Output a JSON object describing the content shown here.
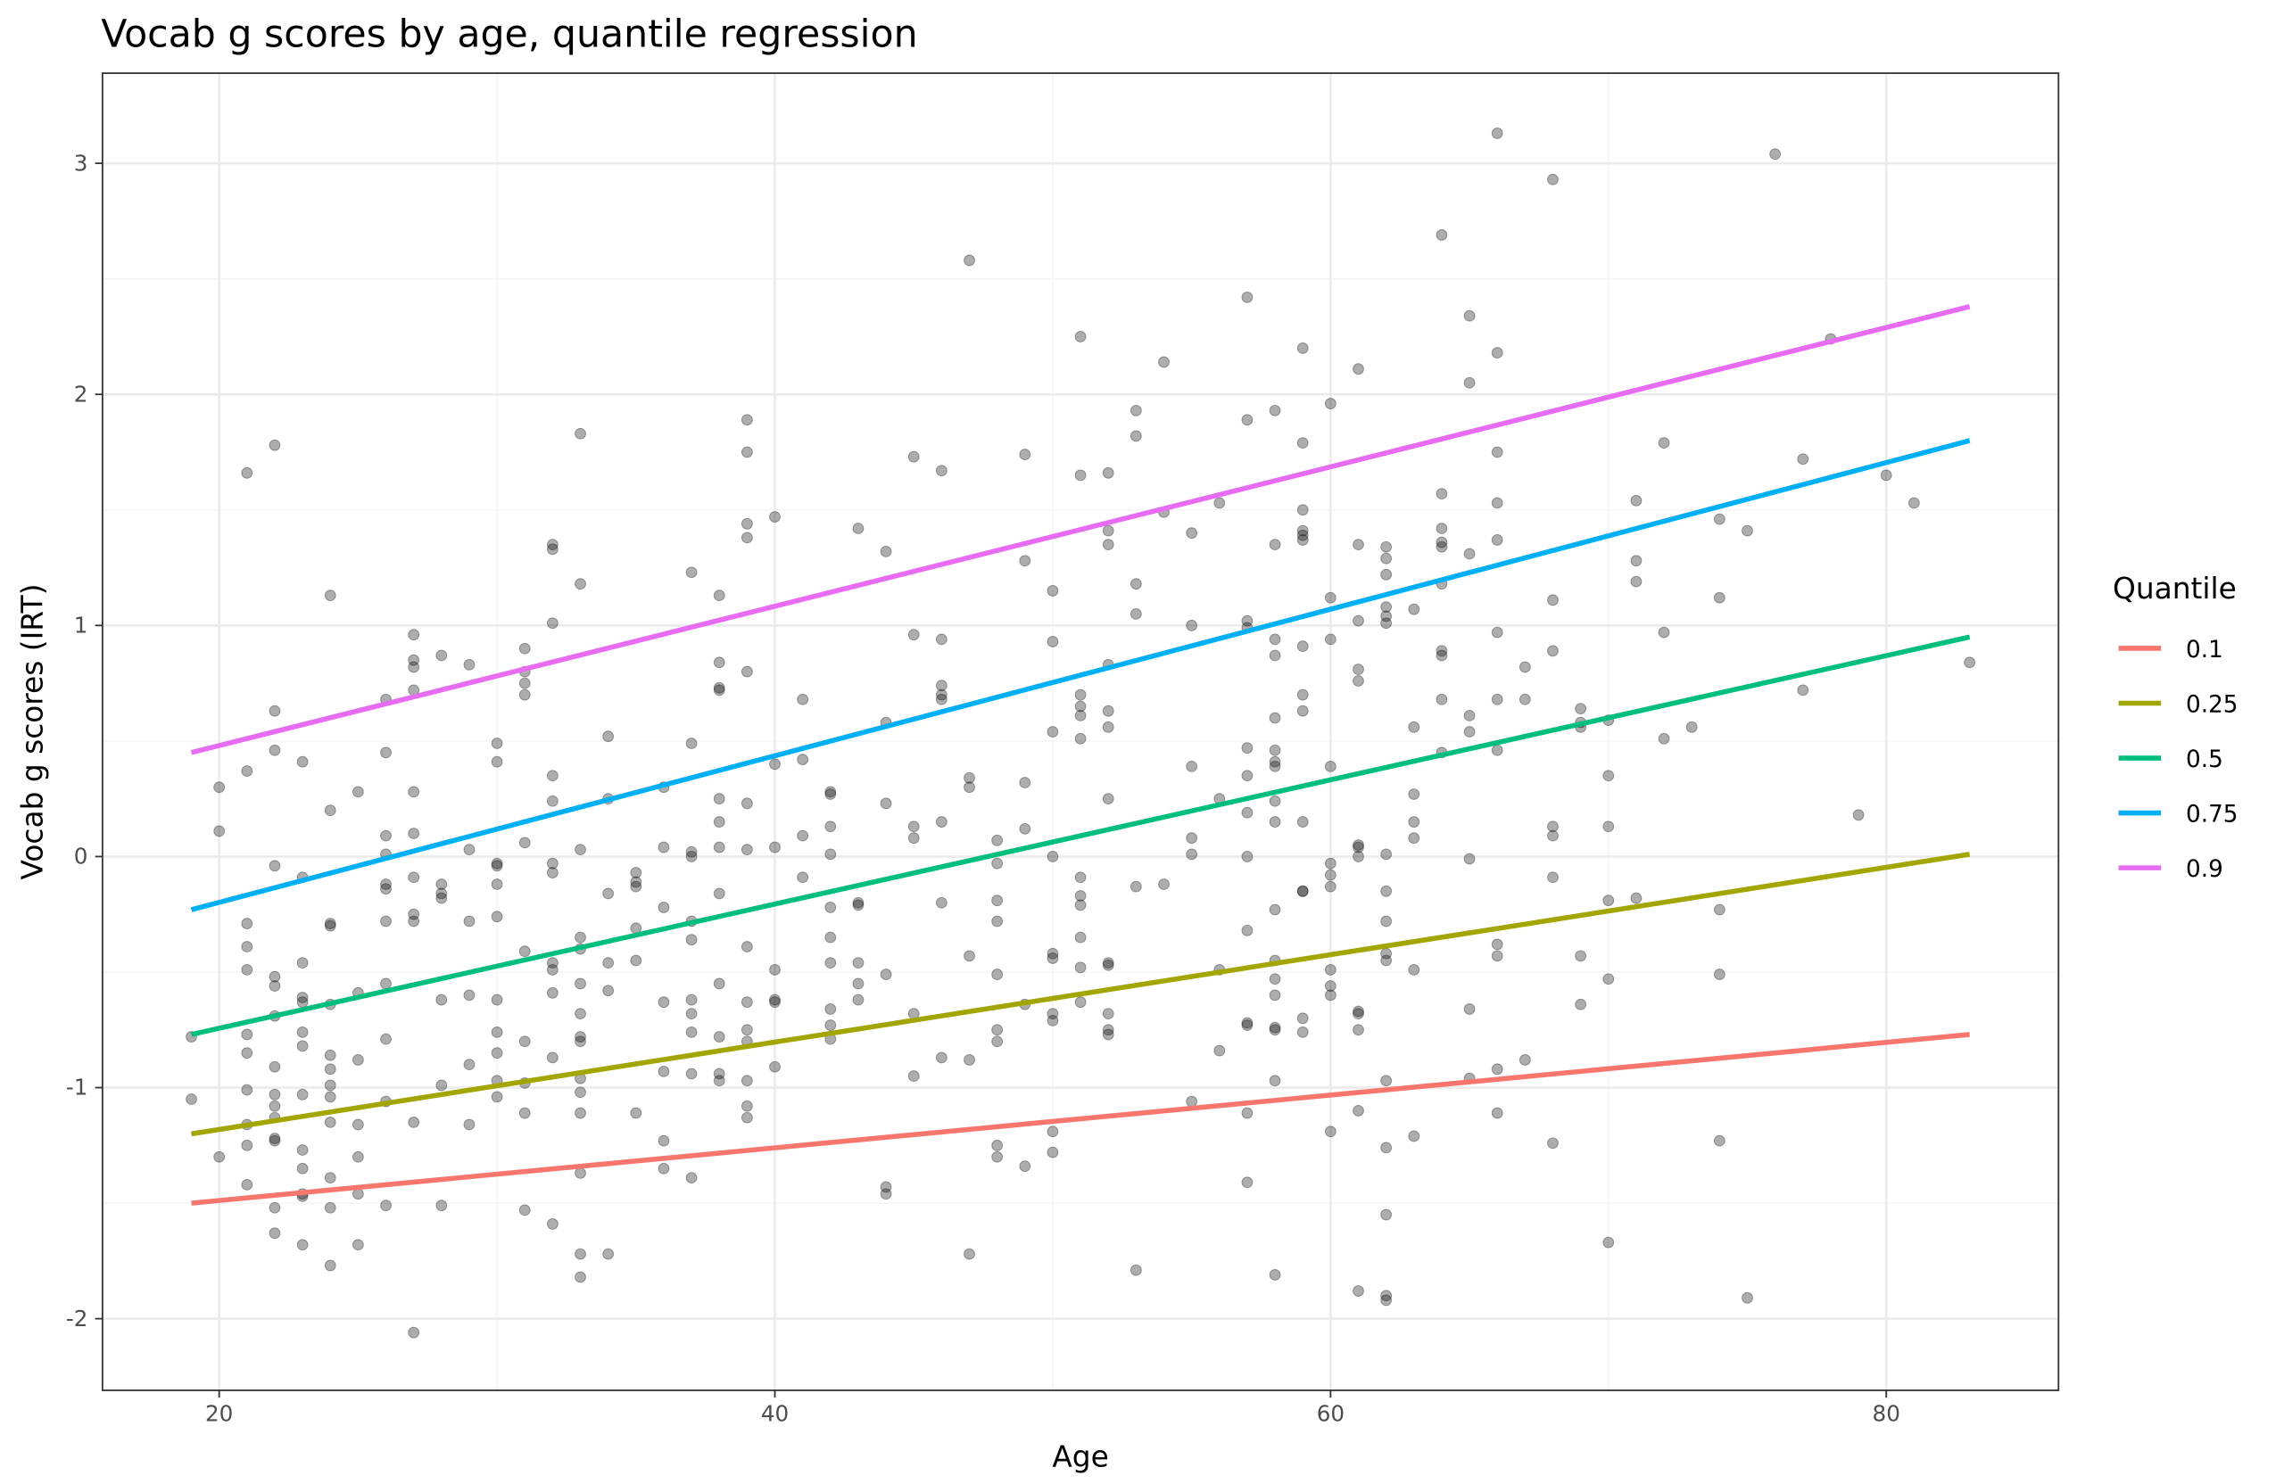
{
  "chart_data": {
    "type": "scatter",
    "title": "Vocab g scores by age, quantile regression",
    "xlabel": "Age",
    "ylabel": "Vocab g scores (IRT)",
    "xlim": [
      15.8,
      86.2
    ],
    "ylim": [
      -2.31,
      3.39
    ],
    "x_ticks": [
      20,
      40,
      60,
      80
    ],
    "x_tick_labels": [
      "20",
      "40",
      "60",
      "80"
    ],
    "y_ticks": [
      -2,
      -1,
      0,
      1,
      2,
      3
    ],
    "y_tick_labels": [
      "-2",
      "-1",
      "0",
      "1",
      "2",
      "3"
    ],
    "grid": true,
    "legend": {
      "title": "Quantile",
      "placement": "right",
      "entries": [
        "0.1",
        "0.25",
        "0.5",
        "0.75",
        "0.9"
      ]
    },
    "lines": [
      {
        "name": "0.1",
        "color": "#F8766D",
        "x": [
          19,
          83
        ],
        "y": [
          -1.5,
          -0.77
        ]
      },
      {
        "name": "0.25",
        "color": "#A3A500",
        "x": [
          19,
          83
        ],
        "y": [
          -1.2,
          0.01
        ]
      },
      {
        "name": "0.5",
        "color": "#00BF7D",
        "x": [
          19,
          83
        ],
        "y": [
          -0.77,
          0.95
        ]
      },
      {
        "name": "0.75",
        "color": "#00B0F6",
        "x": [
          19,
          83
        ],
        "y": [
          -0.23,
          1.8
        ]
      },
      {
        "name": "0.9",
        "color": "#E76BF3",
        "x": [
          19,
          83
        ],
        "y": [
          0.45,
          2.38
        ]
      }
    ],
    "points_by_age": {
      "19": [
        -0.78,
        -1.05
      ],
      "20": [
        0.3,
        0.11,
        -1.3
      ],
      "21": [
        1.66,
        0.37,
        -0.29,
        -0.39,
        -0.49,
        -0.77,
        -0.85,
        -1.01,
        -1.16,
        -1.25,
        -1.42
      ],
      "22": [
        1.78,
        0.63,
        0.46,
        -0.04,
        -0.52,
        -0.56,
        -0.69,
        -0.91,
        -1.03,
        -1.08,
        -1.13,
        -1.22,
        -1.23,
        -1.52,
        -1.63
      ],
      "23": [
        0.41,
        -0.09,
        -0.46,
        -0.61,
        -0.63,
        -0.76,
        -0.82,
        -1.03,
        -1.27,
        -1.35,
        -1.46,
        -1.47,
        -1.68
      ],
      "24": [
        1.13,
        0.2,
        -0.29,
        -0.3,
        -0.64,
        -0.86,
        -0.92,
        -0.99,
        -1.04,
        -1.15,
        -1.39,
        -1.52,
        -1.77
      ],
      "25": [
        0.28,
        -0.59,
        -0.88,
        -1.16,
        -1.3,
        -1.46,
        -1.68
      ],
      "26": [
        0.68,
        0.45,
        0.09,
        0.01,
        -0.12,
        -0.14,
        -0.28,
        -0.55,
        -0.79,
        -1.06,
        -1.51
      ],
      "27": [
        0.96,
        0.85,
        0.82,
        0.72,
        0.28,
        0.1,
        -0.09,
        -0.25,
        -0.28,
        -1.15,
        -2.06
      ],
      "28": [
        0.87,
        -0.12,
        -0.16,
        -0.18,
        -0.62,
        -0.99,
        -1.51
      ],
      "29": [
        0.83,
        0.03,
        -0.28,
        -0.6,
        -0.9,
        -1.16
      ],
      "30": [
        0.49,
        0.41,
        -0.03,
        -0.04,
        -0.12,
        -0.26,
        -0.62,
        -0.76,
        -0.85,
        -0.97,
        -1.04
      ],
      "31": [
        0.9,
        0.8,
        0.75,
        0.7,
        0.06,
        -0.41,
        -0.8,
        -0.98,
        -1.11,
        -1.53
      ],
      "32": [
        1.35,
        1.33,
        1.01,
        0.35,
        0.24,
        -0.03,
        -0.07,
        -0.46,
        -0.49,
        -0.59,
        -0.87,
        -1.59
      ],
      "33": [
        1.83,
        1.18,
        0.03,
        -0.35,
        -0.4,
        -0.55,
        -0.68,
        -0.78,
        -0.8,
        -0.96,
        -1.02,
        -1.11,
        -1.37,
        -1.72,
        -1.82
      ],
      "34": [
        0.52,
        0.25,
        -0.16,
        -0.46,
        -0.58,
        -1.72
      ],
      "35": [
        -0.07,
        -0.11,
        -0.13,
        -0.31,
        -0.45,
        -1.11
      ],
      "36": [
        0.3,
        0.04,
        -0.22,
        -0.63,
        -0.93,
        -1.23,
        -1.35
      ],
      "37": [
        1.23,
        0.49,
        0.02,
        0.0,
        -0.28,
        -0.36,
        -0.62,
        -0.68,
        -0.76,
        -0.94,
        -1.39
      ],
      "38": [
        1.13,
        0.84,
        0.73,
        0.72,
        0.25,
        0.15,
        0.04,
        -0.16,
        -0.55,
        -0.78,
        -0.94,
        -0.97
      ],
      "39": [
        1.89,
        1.75,
        1.44,
        1.38,
        0.8,
        0.23,
        0.03,
        -0.39,
        -0.63,
        -0.75,
        -0.8,
        -0.97,
        -1.08,
        -1.13
      ],
      "40": [
        1.47,
        0.4,
        0.04,
        -0.49,
        -0.62,
        -0.63,
        -0.91
      ],
      "41": [
        0.68,
        0.42,
        0.09,
        -0.09
      ],
      "42": [
        0.28,
        0.27,
        0.13,
        0.01,
        -0.22,
        -0.35,
        -0.46,
        -0.66,
        -0.73,
        -0.79
      ],
      "43": [
        1.42,
        -0.2,
        -0.21,
        -0.46,
        -0.55,
        -0.62
      ],
      "44": [
        1.32,
        0.58,
        0.23,
        -0.51,
        -1.43,
        -1.46
      ],
      "45": [
        1.73,
        0.96,
        0.13,
        0.08,
        -0.68,
        -0.95
      ],
      "46": [
        1.67,
        0.94,
        0.74,
        0.7,
        0.68,
        0.15,
        -0.2,
        -0.87
      ],
      "47": [
        2.58,
        0.34,
        0.3,
        -0.43,
        -0.88,
        -1.72
      ],
      "48": [
        0.07,
        -0.03,
        -0.19,
        -0.28,
        -0.51,
        -0.75,
        -0.8,
        -1.25,
        -1.3
      ],
      "49": [
        1.74,
        1.28,
        0.32,
        0.12,
        -0.64,
        -1.34
      ],
      "50": [
        1.15,
        0.93,
        0.54,
        0.0,
        -0.42,
        -0.44,
        -0.68,
        -0.71,
        -1.19,
        -1.28
      ],
      "51": [
        2.25,
        1.65,
        0.7,
        0.65,
        0.61,
        0.51,
        -0.09,
        -0.17,
        -0.21,
        -0.35,
        -0.48,
        -0.63
      ],
      "52": [
        1.66,
        1.41,
        1.35,
        0.83,
        0.63,
        0.56,
        0.25,
        -0.46,
        -0.47,
        -0.68,
        -0.75,
        -0.77
      ],
      "53": [
        1.93,
        1.82,
        1.18,
        1.05,
        -0.13,
        -1.79
      ],
      "54": [
        2.14,
        1.49,
        -0.12
      ],
      "55": [
        1.4,
        1.0,
        0.39,
        0.08,
        0.01,
        -1.06
      ],
      "56": [
        1.53,
        0.25,
        -0.49,
        -0.84
      ],
      "57": [
        2.42,
        1.89,
        1.02,
        0.99,
        0.47,
        0.35,
        0.19,
        0.0,
        -0.32,
        -0.72,
        -0.73,
        -1.11,
        -1.41
      ],
      "58": [
        1.93,
        1.35,
        0.94,
        0.87,
        0.6,
        0.46,
        0.41,
        0.39,
        0.24,
        0.15,
        -0.23,
        -0.45,
        -0.53,
        -0.6,
        -0.74,
        -0.75,
        -0.97,
        -1.81
      ],
      "59": [
        2.2,
        1.79,
        1.5,
        1.41,
        1.39,
        1.37,
        0.91,
        0.7,
        0.63,
        0.15,
        -0.15,
        -0.15,
        -0.7,
        -0.76
      ],
      "60": [
        1.96,
        1.12,
        0.94,
        0.39,
        -0.03,
        -0.08,
        -0.13,
        -0.49,
        -0.56,
        -0.6,
        -1.19
      ],
      "61": [
        2.11,
        1.35,
        1.02,
        0.81,
        0.76,
        0.05,
        0.04,
        0.0,
        -0.67,
        -0.68,
        -0.75,
        -1.1,
        -1.88
      ],
      "62": [
        1.34,
        1.29,
        1.22,
        1.08,
        1.04,
        1.01,
        0.01,
        -0.15,
        -0.28,
        -0.42,
        -0.45,
        -0.97,
        -1.26,
        -1.55,
        -1.9,
        -1.92
      ],
      "63": [
        1.07,
        0.56,
        0.27,
        0.15,
        0.08,
        -0.49,
        -1.21
      ],
      "64": [
        2.69,
        1.57,
        1.42,
        1.36,
        1.34,
        1.18,
        0.89,
        0.87,
        0.68,
        0.45
      ],
      "65": [
        2.34,
        2.05,
        1.31,
        0.61,
        0.54,
        -0.01,
        -0.66,
        -0.96
      ],
      "66": [
        3.13,
        2.18,
        1.75,
        1.53,
        1.37,
        0.97,
        0.68,
        0.46,
        -0.38,
        -0.43,
        -0.92,
        -1.11
      ],
      "67": [
        0.82,
        0.68,
        -0.88
      ],
      "68": [
        2.93,
        1.11,
        0.89,
        0.13,
        0.09,
        -0.09,
        -1.24
      ],
      "69": [
        0.64,
        0.58,
        0.56,
        -0.43,
        -0.64
      ],
      "70": [
        0.59,
        0.35,
        0.13,
        -0.19,
        -0.53,
        -1.67
      ],
      "71": [
        1.54,
        1.28,
        1.19,
        -0.18
      ],
      "72": [
        1.79,
        0.97,
        0.51
      ],
      "73": [
        0.56
      ],
      "74": [
        1.46,
        1.12,
        -0.23,
        -0.51,
        -1.23
      ],
      "75": [
        1.41,
        -1.91
      ],
      "76": [
        3.04
      ],
      "77": [
        1.72,
        0.72
      ],
      "78": [
        2.24
      ],
      "79": [
        0.18
      ],
      "80": [
        1.65
      ],
      "81": [
        1.53
      ],
      "83": [
        0.84
      ]
    }
  }
}
